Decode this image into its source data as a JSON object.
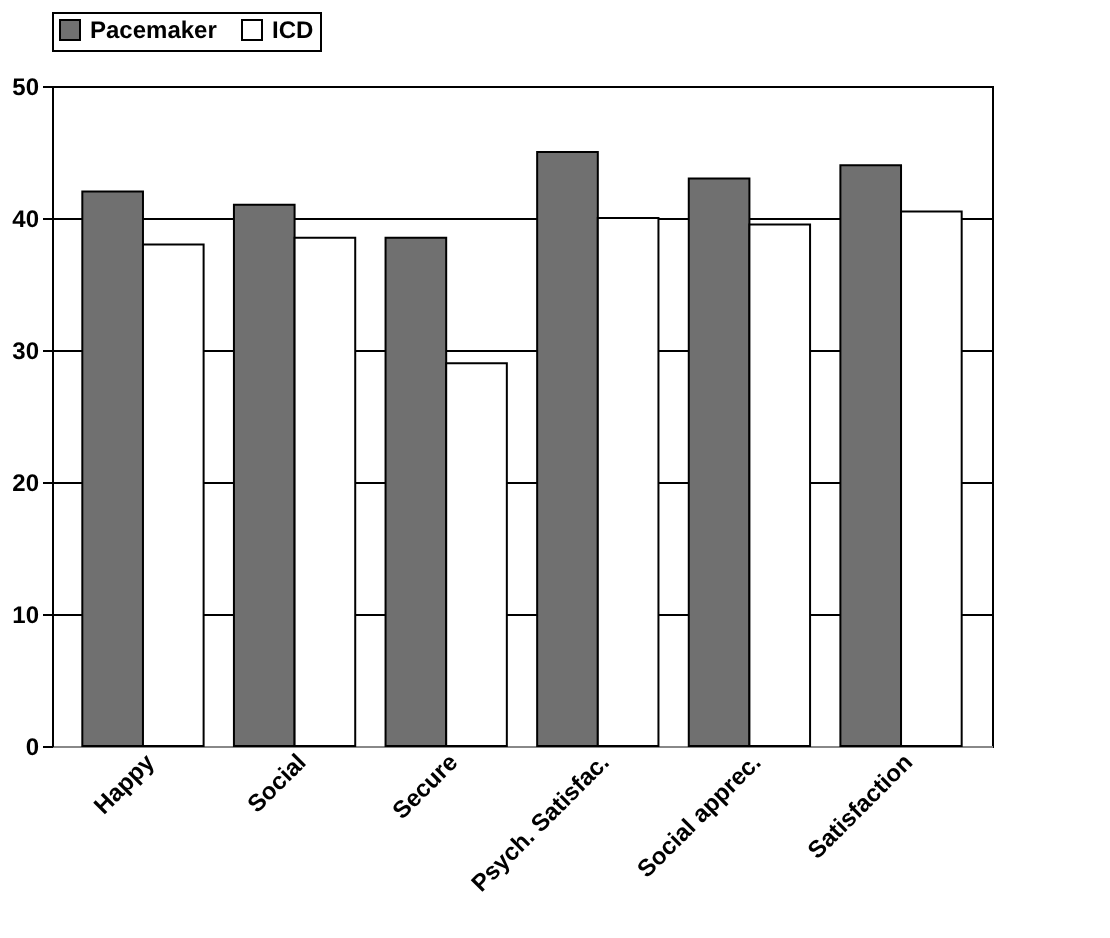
{
  "chart_data": {
    "type": "bar",
    "categories": [
      "Happy",
      "Social",
      "Secure",
      "Psych. Satisfac.",
      "Social apprec.",
      "Satisfaction"
    ],
    "series": [
      {
        "name": "Pacemaker",
        "color": "#707070",
        "values": [
          42,
          41,
          38.5,
          45,
          43,
          44
        ]
      },
      {
        "name": "ICD",
        "color": "#ffffff",
        "values": [
          38,
          38.5,
          29,
          40,
          39.5,
          40.5
        ]
      }
    ],
    "ylim": [
      0,
      50
    ],
    "yticks": [
      0,
      10,
      20,
      30,
      40,
      50
    ],
    "grid": "y",
    "legend": "top"
  }
}
